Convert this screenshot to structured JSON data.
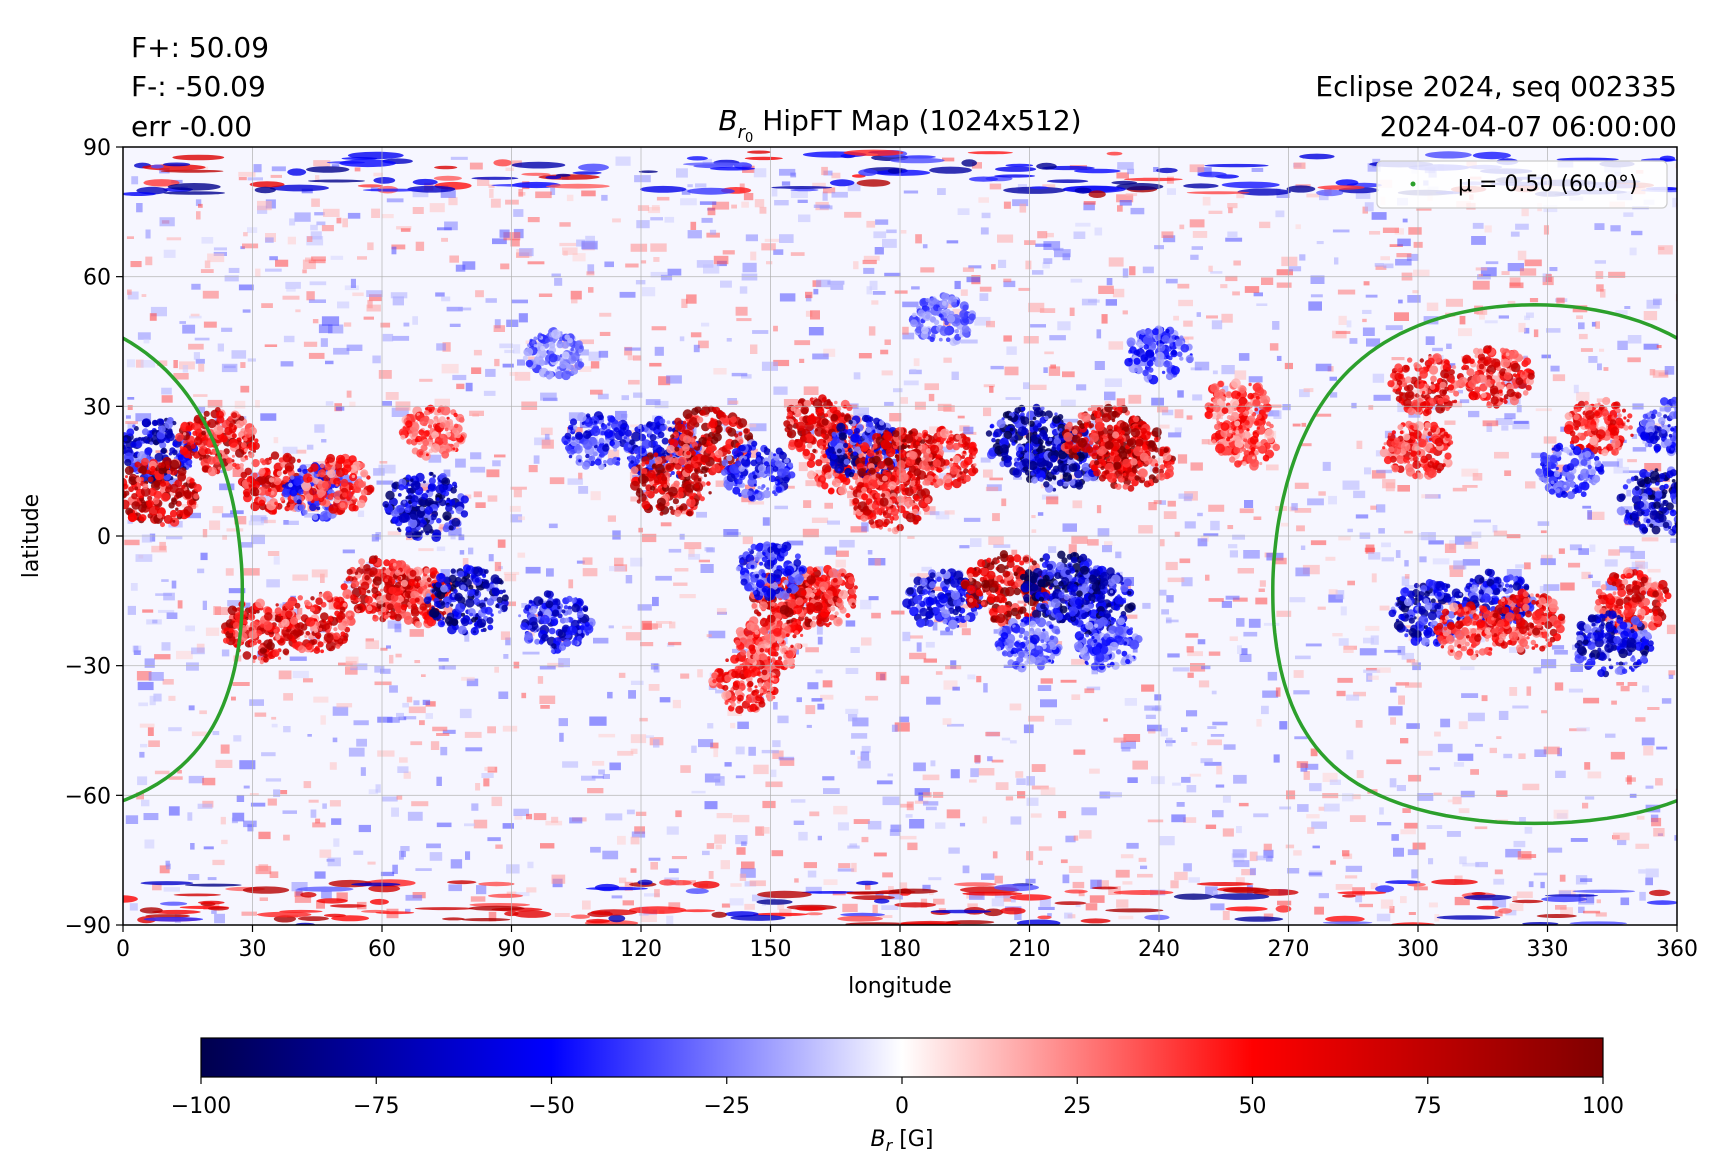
{
  "header": {
    "flux_plus": "F+: 50.09",
    "flux_minus": "F-: -50.09",
    "err": "err -0.00",
    "run": "Eclipse 2024, seq 002335",
    "datetime": "2024-04-07 06:00:00",
    "title_sym": "B",
    "title_sub": "r",
    "title_subsub": "0",
    "title_rest": " HipFT Map (1024x512)"
  },
  "chart_data": {
    "type": "heatmap",
    "xlabel": "longitude",
    "ylabel": "latitude",
    "xlim": [
      0,
      360
    ],
    "ylim": [
      -90,
      90
    ],
    "xticks": [
      "0",
      "30",
      "60",
      "90",
      "120",
      "150",
      "180",
      "210",
      "240",
      "270",
      "300",
      "330",
      "360"
    ],
    "yticks": [
      "90",
      "60",
      "30",
      "0",
      "−30",
      "−60",
      "−90"
    ],
    "grid": true,
    "colorscale": {
      "name": "seismic",
      "min": -100,
      "max": 100,
      "stops": [
        "#00004d",
        "#0000ff",
        "#ffffff",
        "#ff0000",
        "#800000"
      ]
    },
    "colorbar": {
      "label_sym": "B",
      "label_sub": "r",
      "label_unit": " [G]",
      "ticks": [
        "−100",
        "−75",
        "−50",
        "−25",
        "0",
        "25",
        "50",
        "75",
        "100"
      ]
    },
    "legend": {
      "placement": "top-right",
      "entry": "μ = 0.50 (60.0°)",
      "color": "#2ca02c"
    },
    "mu_contour": {
      "mu": 0.5,
      "angle_deg": 60.0,
      "center_lon": 327,
      "center_lat": -6.5,
      "color": "#2ca02c"
    },
    "active_regions": [
      {
        "lon": 8,
        "lat": 20,
        "sign": -1,
        "strength": 0.8
      },
      {
        "lon": 8,
        "lat": 10,
        "sign": 1,
        "strength": 0.9
      },
      {
        "lon": 22,
        "lat": 22,
        "sign": 1,
        "strength": 0.8
      },
      {
        "lon": 36,
        "lat": 12,
        "sign": 1,
        "strength": 0.7
      },
      {
        "lon": 45,
        "lat": 10,
        "sign": -1,
        "strength": 0.6
      },
      {
        "lon": 50,
        "lat": 12,
        "sign": 1,
        "strength": 0.6
      },
      {
        "lon": 72,
        "lat": 24,
        "sign": 1,
        "strength": 0.5
      },
      {
        "lon": 70,
        "lat": 7,
        "sign": -1,
        "strength": 0.9
      },
      {
        "lon": 32,
        "lat": -22,
        "sign": 1,
        "strength": 0.8
      },
      {
        "lon": 45,
        "lat": -20,
        "sign": 1,
        "strength": 0.7
      },
      {
        "lon": 60,
        "lat": -12,
        "sign": 1,
        "strength": 0.8
      },
      {
        "lon": 68,
        "lat": -14,
        "sign": 1,
        "strength": 0.7
      },
      {
        "lon": 80,
        "lat": -15,
        "sign": -1,
        "strength": 0.9
      },
      {
        "lon": 100,
        "lat": -20,
        "sign": -1,
        "strength": 0.7
      },
      {
        "lon": 110,
        "lat": 22,
        "sign": -1,
        "strength": 0.6
      },
      {
        "lon": 125,
        "lat": 20,
        "sign": -1,
        "strength": 0.7
      },
      {
        "lon": 127,
        "lat": 12,
        "sign": 1,
        "strength": 0.9
      },
      {
        "lon": 136,
        "lat": 22,
        "sign": 1,
        "strength": 0.9
      },
      {
        "lon": 147,
        "lat": 15,
        "sign": -1,
        "strength": 0.6
      },
      {
        "lon": 162,
        "lat": 25,
        "sign": 1,
        "strength": 0.8
      },
      {
        "lon": 167,
        "lat": 16,
        "sign": 1,
        "strength": 0.6
      },
      {
        "lon": 172,
        "lat": 20,
        "sign": -1,
        "strength": 0.8
      },
      {
        "lon": 180,
        "lat": 17,
        "sign": 1,
        "strength": 0.9
      },
      {
        "lon": 190,
        "lat": 18,
        "sign": 1,
        "strength": 0.7
      },
      {
        "lon": 178,
        "lat": 8,
        "sign": 1,
        "strength": 0.7
      },
      {
        "lon": 210,
        "lat": 22,
        "sign": -1,
        "strength": 1.0
      },
      {
        "lon": 217,
        "lat": 18,
        "sign": -1,
        "strength": 0.9
      },
      {
        "lon": 228,
        "lat": 22,
        "sign": 1,
        "strength": 1.0
      },
      {
        "lon": 234,
        "lat": 18,
        "sign": 1,
        "strength": 0.9
      },
      {
        "lon": 155,
        "lat": -15,
        "sign": 1,
        "strength": 0.8
      },
      {
        "lon": 162,
        "lat": -14,
        "sign": 1,
        "strength": 0.7
      },
      {
        "lon": 150,
        "lat": -25,
        "sign": 1,
        "strength": 0.6
      },
      {
        "lon": 144,
        "lat": -34,
        "sign": 1,
        "strength": 0.6
      },
      {
        "lon": 150,
        "lat": -8,
        "sign": -1,
        "strength": 0.6
      },
      {
        "lon": 190,
        "lat": -15,
        "sign": -1,
        "strength": 0.7
      },
      {
        "lon": 205,
        "lat": -12,
        "sign": 1,
        "strength": 1.0
      },
      {
        "lon": 218,
        "lat": -12,
        "sign": -1,
        "strength": 1.0
      },
      {
        "lon": 225,
        "lat": -15,
        "sign": -1,
        "strength": 0.9
      },
      {
        "lon": 210,
        "lat": -25,
        "sign": -1,
        "strength": 0.5
      },
      {
        "lon": 228,
        "lat": -25,
        "sign": -1,
        "strength": 0.5
      },
      {
        "lon": 260,
        "lat": 22,
        "sign": 1,
        "strength": 0.5
      },
      {
        "lon": 258,
        "lat": 30,
        "sign": 1,
        "strength": 0.5
      },
      {
        "lon": 302,
        "lat": 35,
        "sign": 1,
        "strength": 0.7
      },
      {
        "lon": 318,
        "lat": 37,
        "sign": 1,
        "strength": 0.7
      },
      {
        "lon": 300,
        "lat": 20,
        "sign": 1,
        "strength": 0.6
      },
      {
        "lon": 303,
        "lat": -18,
        "sign": -1,
        "strength": 0.8
      },
      {
        "lon": 318,
        "lat": -15,
        "sign": -1,
        "strength": 0.7
      },
      {
        "lon": 312,
        "lat": -22,
        "sign": 1,
        "strength": 0.6
      },
      {
        "lon": 325,
        "lat": -20,
        "sign": 1,
        "strength": 0.7
      },
      {
        "lon": 342,
        "lat": 25,
        "sign": 1,
        "strength": 0.6
      },
      {
        "lon": 335,
        "lat": 15,
        "sign": -1,
        "strength": 0.5
      },
      {
        "lon": 350,
        "lat": -15,
        "sign": 1,
        "strength": 0.7
      },
      {
        "lon": 345,
        "lat": -25,
        "sign": -1,
        "strength": 0.8
      },
      {
        "lon": 356,
        "lat": 8,
        "sign": -1,
        "strength": 0.9
      },
      {
        "lon": 359,
        "lat": 25,
        "sign": -1,
        "strength": 0.6
      },
      {
        "lon": 190,
        "lat": 50,
        "sign": -1,
        "strength": 0.4
      },
      {
        "lon": 240,
        "lat": 42,
        "sign": -1,
        "strength": 0.5
      },
      {
        "lon": 100,
        "lat": 42,
        "sign": -1,
        "strength": 0.4
      }
    ],
    "polar_bands": [
      {
        "lat": 84,
        "sign": -1,
        "strength": 0.8
      },
      {
        "lat": -85,
        "sign": 1,
        "strength": 0.8
      }
    ]
  }
}
